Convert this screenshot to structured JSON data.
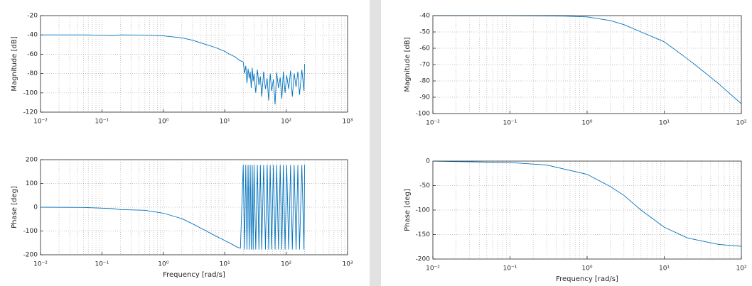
{
  "chart_data": [
    {
      "type": "line",
      "ylabel": "Magnitude [dB]",
      "xscale": "log",
      "grid": true,
      "minor_grid": true,
      "color": "#0072bd",
      "xlim": [
        0.01,
        1000
      ],
      "ylim": [
        -120,
        -20
      ],
      "xticks": [
        {
          "value": 0.01,
          "label": "10⁻²"
        },
        {
          "value": 0.1,
          "label": "10⁻¹"
        },
        {
          "value": 1,
          "label": "10⁰"
        },
        {
          "value": 10,
          "label": "10¹"
        },
        {
          "value": 100,
          "label": "10²"
        },
        {
          "value": 1000,
          "label": "10³"
        }
      ],
      "yticks": [
        -120,
        -100,
        -80,
        -60,
        -40,
        -20
      ],
      "x": [
        0.01,
        0.02,
        0.05,
        0.1,
        0.15,
        0.2,
        0.5,
        1,
        2,
        3,
        5,
        7,
        10,
        12,
        15,
        17,
        20,
        21,
        22,
        23,
        24,
        25,
        26,
        27,
        28,
        29,
        30,
        32,
        34,
        36,
        38,
        40,
        43,
        46,
        49,
        52,
        55,
        58,
        62,
        66,
        70,
        75,
        80,
        85,
        90,
        96,
        102,
        110,
        118,
        126,
        135,
        145,
        155,
        165,
        180,
        195,
        200
      ],
      "values": [
        -40,
        -40,
        -40,
        -40.3,
        -40.6,
        -40,
        -40.2,
        -41,
        -43,
        -45.5,
        -50,
        -53,
        -57,
        -60,
        -63,
        -66,
        -68,
        -80,
        -72,
        -90,
        -75,
        -85,
        -78,
        -95,
        -74,
        -88,
        -80,
        -100,
        -76,
        -92,
        -83,
        -104,
        -78,
        -96,
        -85,
        -108,
        -80,
        -98,
        -86,
        -112,
        -79,
        -95,
        -84,
        -106,
        -78,
        -100,
        -82,
        -96,
        -77,
        -104,
        -80,
        -94,
        -78,
        -102,
        -76,
        -98,
        -70
      ]
    },
    {
      "type": "line",
      "ylabel": "Phase [deg]",
      "xlabel": "Frequency [rad/s]",
      "xscale": "log",
      "grid": true,
      "minor_grid": true,
      "color": "#0072bd",
      "xlim": [
        0.01,
        1000
      ],
      "ylim": [
        -200,
        200
      ],
      "xticks": [
        {
          "value": 0.01,
          "label": "10⁻²"
        },
        {
          "value": 0.1,
          "label": "10⁻¹"
        },
        {
          "value": 1,
          "label": "10⁰"
        },
        {
          "value": 10,
          "label": "10¹"
        },
        {
          "value": 100,
          "label": "10²"
        },
        {
          "value": 1000,
          "label": "10³"
        }
      ],
      "yticks": [
        -200,
        -100,
        0,
        100,
        200
      ],
      "x": [
        0.01,
        0.05,
        0.1,
        0.15,
        0.2,
        0.5,
        1,
        2,
        3,
        5,
        7,
        10,
        13,
        16,
        18,
        20,
        21,
        22,
        23,
        24,
        25,
        26,
        27,
        28,
        29,
        30,
        32,
        34,
        36,
        38,
        40,
        43,
        46,
        49,
        52,
        55,
        58,
        62,
        66,
        70,
        75,
        80,
        85,
        90,
        96,
        102,
        110,
        118,
        126,
        135,
        145,
        155,
        165,
        180,
        195,
        200
      ],
      "values": [
        0,
        -1,
        -4,
        -6,
        -10,
        -13,
        -25,
        -48,
        -70,
        -100,
        -120,
        -140,
        -155,
        -168,
        -172,
        178,
        -178,
        178,
        -178,
        178,
        -178,
        178,
        -178,
        178,
        -178,
        178,
        -178,
        178,
        -178,
        178,
        -178,
        178,
        -178,
        178,
        -178,
        178,
        -178,
        178,
        -178,
        178,
        -178,
        178,
        -178,
        178,
        -178,
        178,
        -178,
        178,
        -178,
        178,
        -178,
        178,
        -178,
        178,
        -178,
        178
      ]
    },
    {
      "type": "line",
      "ylabel": "Magnitude [dB]",
      "xscale": "log",
      "grid": true,
      "minor_grid": true,
      "color": "#0072bd",
      "xlim": [
        0.01,
        100
      ],
      "ylim": [
        -100,
        -40
      ],
      "xticks": [
        {
          "value": 0.01,
          "label": "10⁻²"
        },
        {
          "value": 0.1,
          "label": "10⁻¹"
        },
        {
          "value": 1,
          "label": "10⁰"
        },
        {
          "value": 10,
          "label": "10¹"
        },
        {
          "value": 100,
          "label": "10²"
        }
      ],
      "yticks": [
        -100,
        -90,
        -80,
        -70,
        -60,
        -50,
        -40
      ],
      "x": [
        0.01,
        0.1,
        0.5,
        1,
        2,
        3,
        5,
        10,
        20,
        30,
        50,
        100
      ],
      "values": [
        -40,
        -40,
        -40.3,
        -40.8,
        -43,
        -45.5,
        -50,
        -56,
        -66.5,
        -73,
        -81.5,
        -94
      ]
    },
    {
      "type": "line",
      "ylabel": "Phase [deg]",
      "xlabel": "Frequency [rad/s]",
      "xscale": "log",
      "grid": true,
      "minor_grid": true,
      "color": "#0072bd",
      "xlim": [
        0.01,
        100
      ],
      "ylim": [
        -200,
        0
      ],
      "xticks": [
        {
          "value": 0.01,
          "label": "10⁻²"
        },
        {
          "value": 0.1,
          "label": "10⁻¹"
        },
        {
          "value": 1,
          "label": "10⁰"
        },
        {
          "value": 10,
          "label": "10¹"
        },
        {
          "value": 100,
          "label": "10²"
        }
      ],
      "yticks": [
        -200,
        -150,
        -100,
        -50,
        0
      ],
      "x": [
        0.01,
        0.1,
        0.3,
        1,
        2,
        3,
        5,
        10,
        20,
        50,
        100
      ],
      "values": [
        0,
        -3,
        -8,
        -27,
        -52,
        -70,
        -100,
        -135,
        -157,
        -170,
        -174
      ]
    }
  ]
}
